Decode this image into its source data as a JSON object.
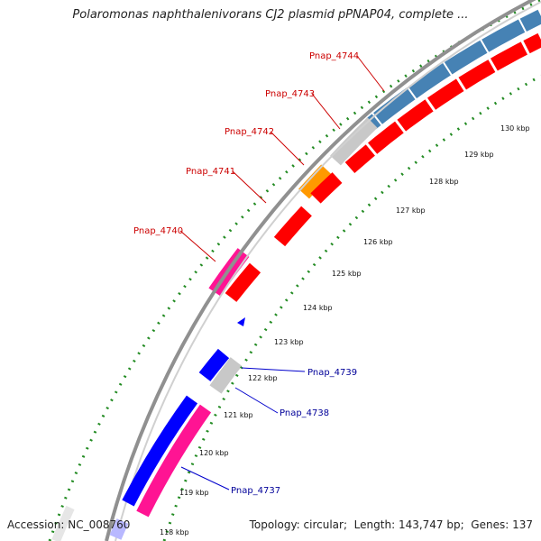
{
  "title": "Polaromonas naphthalenivorans CJ2 plasmid pPNAP04, complete ...",
  "footer": {
    "accession_label": "Accession:",
    "accession_value": "NC_008760",
    "topology_label": "Topology:",
    "topology_value": "circular",
    "length_label": "Length:",
    "length_value": "143,747 bp",
    "genes_label": "Genes:",
    "genes_value": "137"
  },
  "colors": {
    "forward_strand": "#ff0000",
    "pink_gene": "#ff1493",
    "blue_gene": "#0000ff",
    "steelblue_gene": "#4682b4",
    "orange_gene": "#ff9900",
    "gray_gene": "#c8c8c8",
    "backbone": "#808080",
    "gc_skew": "#006400",
    "label_top": "#cc0000",
    "label_bottom": "#000099"
  },
  "scale_ticks": [
    "118 kbp",
    "119 kbp",
    "120 kbp",
    "121 kbp",
    "122 kbp",
    "123 kbp",
    "124 kbp",
    "125 kbp",
    "126 kbp",
    "127 kbp",
    "128 kbp",
    "129 kbp",
    "130 kbp"
  ],
  "gene_labels_top": [
    "Pnap_4740",
    "Pnap_4741",
    "Pnap_4742",
    "Pnap_4743",
    "Pnap_4744"
  ],
  "gene_labels_bottom": [
    "Pnap_4737",
    "Pnap_4738",
    "Pnap_4739"
  ]
}
